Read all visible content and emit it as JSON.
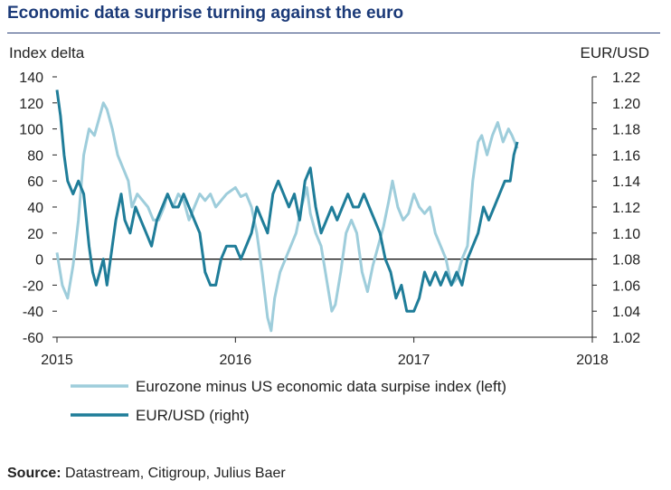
{
  "title": "Economic data surprise turning against the euro",
  "source": {
    "label": "Source:",
    "text": "Datastream, Citigroup, Julius Baer"
  },
  "chart_data": {
    "type": "line",
    "left_axis": {
      "title": "Index delta",
      "ylim": [
        -60,
        140
      ],
      "ticks": [
        140,
        120,
        100,
        80,
        60,
        40,
        20,
        0,
        -20,
        -40,
        -60
      ]
    },
    "right_axis": {
      "title": "EUR/USD",
      "ylim": [
        1.02,
        1.22
      ],
      "ticks": [
        "1.22",
        "1.20",
        "1.18",
        "1.16",
        "1.14",
        "1.12",
        "1.10",
        "1.08",
        "1.06",
        "1.04",
        "1.02"
      ]
    },
    "x_axis": {
      "xlim": [
        2015,
        2018
      ],
      "ticks": [
        "2015",
        "2016",
        "2017",
        "2018"
      ]
    },
    "series": [
      {
        "name": "Eurozone minus US economic data surpise index (left)",
        "axis": "left",
        "color": "#9ecddb",
        "points": [
          [
            2015.0,
            5
          ],
          [
            2015.03,
            -20
          ],
          [
            2015.06,
            -30
          ],
          [
            2015.09,
            -5
          ],
          [
            2015.12,
            30
          ],
          [
            2015.15,
            80
          ],
          [
            2015.18,
            100
          ],
          [
            2015.21,
            95
          ],
          [
            2015.24,
            110
          ],
          [
            2015.26,
            120
          ],
          [
            2015.28,
            115
          ],
          [
            2015.31,
            100
          ],
          [
            2015.34,
            80
          ],
          [
            2015.37,
            70
          ],
          [
            2015.4,
            60
          ],
          [
            2015.42,
            40
          ],
          [
            2015.45,
            50
          ],
          [
            2015.48,
            45
          ],
          [
            2015.51,
            40
          ],
          [
            2015.54,
            30
          ],
          [
            2015.57,
            30
          ],
          [
            2015.6,
            40
          ],
          [
            2015.62,
            50
          ],
          [
            2015.65,
            40
          ],
          [
            2015.68,
            50
          ],
          [
            2015.71,
            45
          ],
          [
            2015.74,
            30
          ],
          [
            2015.77,
            40
          ],
          [
            2015.8,
            50
          ],
          [
            2015.83,
            45
          ],
          [
            2015.86,
            50
          ],
          [
            2015.89,
            40
          ],
          [
            2015.92,
            45
          ],
          [
            2015.95,
            50
          ],
          [
            2016.0,
            55
          ],
          [
            2016.03,
            48
          ],
          [
            2016.06,
            50
          ],
          [
            2016.09,
            40
          ],
          [
            2016.12,
            20
          ],
          [
            2016.15,
            -10
          ],
          [
            2016.18,
            -45
          ],
          [
            2016.2,
            -55
          ],
          [
            2016.22,
            -30
          ],
          [
            2016.25,
            -10
          ],
          [
            2016.28,
            0
          ],
          [
            2016.31,
            10
          ],
          [
            2016.34,
            20
          ],
          [
            2016.37,
            40
          ],
          [
            2016.4,
            55
          ],
          [
            2016.42,
            35
          ],
          [
            2016.45,
            20
          ],
          [
            2016.48,
            10
          ],
          [
            2016.51,
            -15
          ],
          [
            2016.54,
            -40
          ],
          [
            2016.56,
            -35
          ],
          [
            2016.59,
            -10
          ],
          [
            2016.62,
            20
          ],
          [
            2016.65,
            30
          ],
          [
            2016.68,
            20
          ],
          [
            2016.71,
            -10
          ],
          [
            2016.74,
            -25
          ],
          [
            2016.77,
            -5
          ],
          [
            2016.8,
            10
          ],
          [
            2016.83,
            25
          ],
          [
            2016.86,
            45
          ],
          [
            2016.88,
            60
          ],
          [
            2016.91,
            40
          ],
          [
            2016.94,
            30
          ],
          [
            2016.97,
            35
          ],
          [
            2017.0,
            50
          ],
          [
            2017.03,
            40
          ],
          [
            2017.06,
            35
          ],
          [
            2017.09,
            40
          ],
          [
            2017.12,
            20
          ],
          [
            2017.15,
            10
          ],
          [
            2017.18,
            0
          ],
          [
            2017.21,
            -20
          ],
          [
            2017.24,
            -15
          ],
          [
            2017.27,
            0
          ],
          [
            2017.3,
            10
          ],
          [
            2017.33,
            60
          ],
          [
            2017.36,
            90
          ],
          [
            2017.38,
            95
          ],
          [
            2017.41,
            80
          ],
          [
            2017.44,
            95
          ],
          [
            2017.47,
            105
          ],
          [
            2017.5,
            90
          ],
          [
            2017.53,
            100
          ],
          [
            2017.55,
            95
          ],
          [
            2017.58,
            85
          ]
        ]
      },
      {
        "name": "EUR/USD (right)",
        "axis": "right",
        "color": "#1f7d99",
        "points": [
          [
            2015.0,
            1.21
          ],
          [
            2015.02,
            1.19
          ],
          [
            2015.04,
            1.16
          ],
          [
            2015.06,
            1.14
          ],
          [
            2015.09,
            1.13
          ],
          [
            2015.12,
            1.14
          ],
          [
            2015.15,
            1.13
          ],
          [
            2015.18,
            1.09
          ],
          [
            2015.2,
            1.07
          ],
          [
            2015.22,
            1.06
          ],
          [
            2015.24,
            1.07
          ],
          [
            2015.26,
            1.08
          ],
          [
            2015.28,
            1.06
          ],
          [
            2015.3,
            1.08
          ],
          [
            2015.33,
            1.11
          ],
          [
            2015.36,
            1.13
          ],
          [
            2015.38,
            1.11
          ],
          [
            2015.41,
            1.1
          ],
          [
            2015.44,
            1.12
          ],
          [
            2015.47,
            1.11
          ],
          [
            2015.5,
            1.1
          ],
          [
            2015.53,
            1.09
          ],
          [
            2015.56,
            1.11
          ],
          [
            2015.59,
            1.12
          ],
          [
            2015.62,
            1.13
          ],
          [
            2015.65,
            1.12
          ],
          [
            2015.68,
            1.12
          ],
          [
            2015.71,
            1.13
          ],
          [
            2015.74,
            1.12
          ],
          [
            2015.77,
            1.11
          ],
          [
            2015.8,
            1.1
          ],
          [
            2015.83,
            1.07
          ],
          [
            2015.86,
            1.06
          ],
          [
            2015.89,
            1.06
          ],
          [
            2015.92,
            1.08
          ],
          [
            2015.95,
            1.09
          ],
          [
            2016.0,
            1.09
          ],
          [
            2016.03,
            1.08
          ],
          [
            2016.06,
            1.09
          ],
          [
            2016.09,
            1.1
          ],
          [
            2016.12,
            1.12
          ],
          [
            2016.15,
            1.11
          ],
          [
            2016.18,
            1.1
          ],
          [
            2016.21,
            1.13
          ],
          [
            2016.24,
            1.14
          ],
          [
            2016.27,
            1.13
          ],
          [
            2016.3,
            1.12
          ],
          [
            2016.33,
            1.13
          ],
          [
            2016.36,
            1.11
          ],
          [
            2016.39,
            1.14
          ],
          [
            2016.42,
            1.15
          ],
          [
            2016.45,
            1.12
          ],
          [
            2016.48,
            1.1
          ],
          [
            2016.51,
            1.11
          ],
          [
            2016.54,
            1.12
          ],
          [
            2016.57,
            1.11
          ],
          [
            2016.6,
            1.12
          ],
          [
            2016.63,
            1.13
          ],
          [
            2016.66,
            1.12
          ],
          [
            2016.69,
            1.12
          ],
          [
            2016.72,
            1.13
          ],
          [
            2016.75,
            1.12
          ],
          [
            2016.78,
            1.11
          ],
          [
            2016.81,
            1.1
          ],
          [
            2016.84,
            1.08
          ],
          [
            2016.87,
            1.07
          ],
          [
            2016.9,
            1.05
          ],
          [
            2016.93,
            1.06
          ],
          [
            2016.96,
            1.04
          ],
          [
            2017.0,
            1.04
          ],
          [
            2017.03,
            1.05
          ],
          [
            2017.06,
            1.07
          ],
          [
            2017.09,
            1.06
          ],
          [
            2017.12,
            1.07
          ],
          [
            2017.15,
            1.06
          ],
          [
            2017.18,
            1.07
          ],
          [
            2017.21,
            1.06
          ],
          [
            2017.24,
            1.07
          ],
          [
            2017.27,
            1.06
          ],
          [
            2017.3,
            1.08
          ],
          [
            2017.33,
            1.09
          ],
          [
            2017.36,
            1.1
          ],
          [
            2017.39,
            1.12
          ],
          [
            2017.42,
            1.11
          ],
          [
            2017.45,
            1.12
          ],
          [
            2017.48,
            1.13
          ],
          [
            2017.51,
            1.14
          ],
          [
            2017.54,
            1.14
          ],
          [
            2017.56,
            1.16
          ],
          [
            2017.58,
            1.17
          ]
        ]
      }
    ],
    "zero_line": 0
  }
}
